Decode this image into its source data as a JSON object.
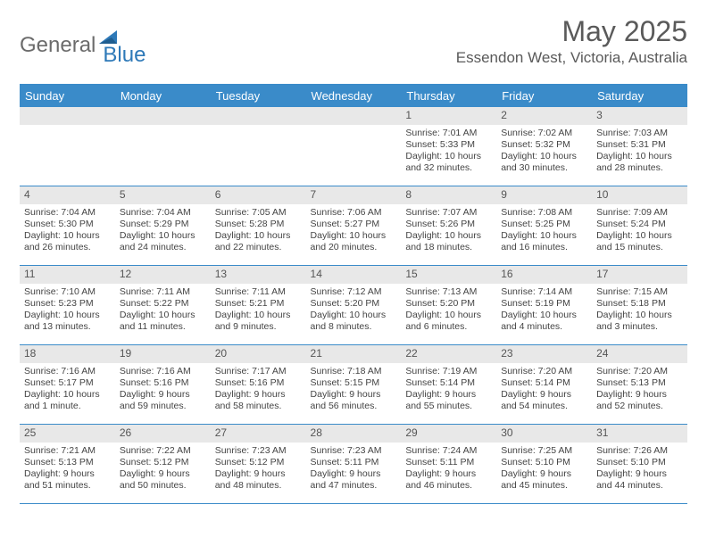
{
  "brand": {
    "word1": "General",
    "word2": "Blue",
    "logo_color": "#2e79b8"
  },
  "title": {
    "month": "May 2025",
    "location": "Essendon West, Victoria, Australia"
  },
  "style": {
    "header_bg": "#3a8bc9",
    "header_fg": "#ffffff",
    "daynum_bg": "#e8e8e8",
    "rule_color": "#3a8bc9",
    "text_color": "#444444",
    "cell_font_size": 10.5,
    "header_font_size": 13,
    "daynum_font_size": 12
  },
  "weekdays": [
    "Sunday",
    "Monday",
    "Tuesday",
    "Wednesday",
    "Thursday",
    "Friday",
    "Saturday"
  ],
  "weeks": [
    [
      null,
      null,
      null,
      null,
      {
        "n": "1",
        "sr": "7:01 AM",
        "ss": "5:33 PM",
        "dl": "10 hours and 32 minutes."
      },
      {
        "n": "2",
        "sr": "7:02 AM",
        "ss": "5:32 PM",
        "dl": "10 hours and 30 minutes."
      },
      {
        "n": "3",
        "sr": "7:03 AM",
        "ss": "5:31 PM",
        "dl": "10 hours and 28 minutes."
      }
    ],
    [
      {
        "n": "4",
        "sr": "7:04 AM",
        "ss": "5:30 PM",
        "dl": "10 hours and 26 minutes."
      },
      {
        "n": "5",
        "sr": "7:04 AM",
        "ss": "5:29 PM",
        "dl": "10 hours and 24 minutes."
      },
      {
        "n": "6",
        "sr": "7:05 AM",
        "ss": "5:28 PM",
        "dl": "10 hours and 22 minutes."
      },
      {
        "n": "7",
        "sr": "7:06 AM",
        "ss": "5:27 PM",
        "dl": "10 hours and 20 minutes."
      },
      {
        "n": "8",
        "sr": "7:07 AM",
        "ss": "5:26 PM",
        "dl": "10 hours and 18 minutes."
      },
      {
        "n": "9",
        "sr": "7:08 AM",
        "ss": "5:25 PM",
        "dl": "10 hours and 16 minutes."
      },
      {
        "n": "10",
        "sr": "7:09 AM",
        "ss": "5:24 PM",
        "dl": "10 hours and 15 minutes."
      }
    ],
    [
      {
        "n": "11",
        "sr": "7:10 AM",
        "ss": "5:23 PM",
        "dl": "10 hours and 13 minutes."
      },
      {
        "n": "12",
        "sr": "7:11 AM",
        "ss": "5:22 PM",
        "dl": "10 hours and 11 minutes."
      },
      {
        "n": "13",
        "sr": "7:11 AM",
        "ss": "5:21 PM",
        "dl": "10 hours and 9 minutes."
      },
      {
        "n": "14",
        "sr": "7:12 AM",
        "ss": "5:20 PM",
        "dl": "10 hours and 8 minutes."
      },
      {
        "n": "15",
        "sr": "7:13 AM",
        "ss": "5:20 PM",
        "dl": "10 hours and 6 minutes."
      },
      {
        "n": "16",
        "sr": "7:14 AM",
        "ss": "5:19 PM",
        "dl": "10 hours and 4 minutes."
      },
      {
        "n": "17",
        "sr": "7:15 AM",
        "ss": "5:18 PM",
        "dl": "10 hours and 3 minutes."
      }
    ],
    [
      {
        "n": "18",
        "sr": "7:16 AM",
        "ss": "5:17 PM",
        "dl": "10 hours and 1 minute."
      },
      {
        "n": "19",
        "sr": "7:16 AM",
        "ss": "5:16 PM",
        "dl": "9 hours and 59 minutes."
      },
      {
        "n": "20",
        "sr": "7:17 AM",
        "ss": "5:16 PM",
        "dl": "9 hours and 58 minutes."
      },
      {
        "n": "21",
        "sr": "7:18 AM",
        "ss": "5:15 PM",
        "dl": "9 hours and 56 minutes."
      },
      {
        "n": "22",
        "sr": "7:19 AM",
        "ss": "5:14 PM",
        "dl": "9 hours and 55 minutes."
      },
      {
        "n": "23",
        "sr": "7:20 AM",
        "ss": "5:14 PM",
        "dl": "9 hours and 54 minutes."
      },
      {
        "n": "24",
        "sr": "7:20 AM",
        "ss": "5:13 PM",
        "dl": "9 hours and 52 minutes."
      }
    ],
    [
      {
        "n": "25",
        "sr": "7:21 AM",
        "ss": "5:13 PM",
        "dl": "9 hours and 51 minutes."
      },
      {
        "n": "26",
        "sr": "7:22 AM",
        "ss": "5:12 PM",
        "dl": "9 hours and 50 minutes."
      },
      {
        "n": "27",
        "sr": "7:23 AM",
        "ss": "5:12 PM",
        "dl": "9 hours and 48 minutes."
      },
      {
        "n": "28",
        "sr": "7:23 AM",
        "ss": "5:11 PM",
        "dl": "9 hours and 47 minutes."
      },
      {
        "n": "29",
        "sr": "7:24 AM",
        "ss": "5:11 PM",
        "dl": "9 hours and 46 minutes."
      },
      {
        "n": "30",
        "sr": "7:25 AM",
        "ss": "5:10 PM",
        "dl": "9 hours and 45 minutes."
      },
      {
        "n": "31",
        "sr": "7:26 AM",
        "ss": "5:10 PM",
        "dl": "9 hours and 44 minutes."
      }
    ]
  ],
  "labels": {
    "sunrise": "Sunrise: ",
    "sunset": "Sunset: ",
    "daylight": "Daylight: "
  }
}
